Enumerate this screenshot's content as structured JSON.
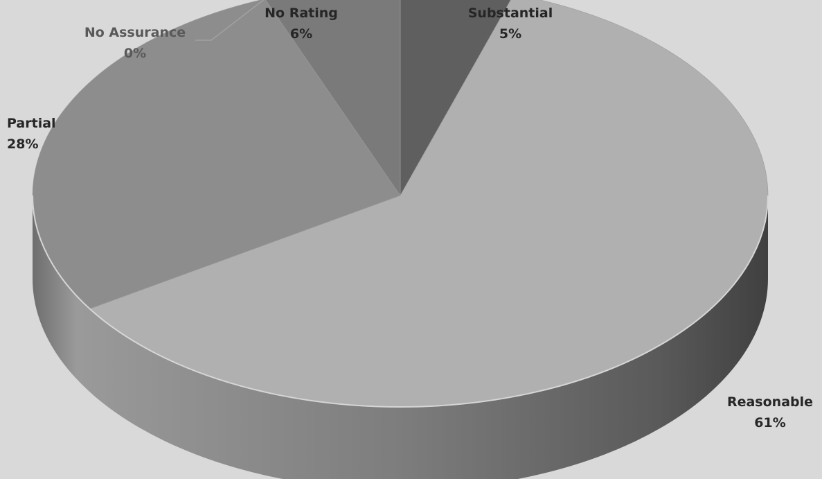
{
  "chart_data": {
    "type": "pie",
    "style": "3d",
    "title": "",
    "slices": [
      {
        "label": "Substantial",
        "value": 5,
        "value_label": "5%",
        "color": "#5f5f5f"
      },
      {
        "label": "Reasonable",
        "value": 61,
        "value_label": "61%",
        "color": "#b0b0b0"
      },
      {
        "label": "Partial",
        "value": 28,
        "value_label": "28%",
        "color": "#8d8d8d"
      },
      {
        "label": "No Assurance",
        "value": 0,
        "value_label": "0%",
        "color": "#a6a6a6"
      },
      {
        "label": "No Rating",
        "value": 6,
        "value_label": "6%",
        "color": "#7a7a7a"
      }
    ],
    "legend": "none",
    "data_labels": "outside"
  }
}
